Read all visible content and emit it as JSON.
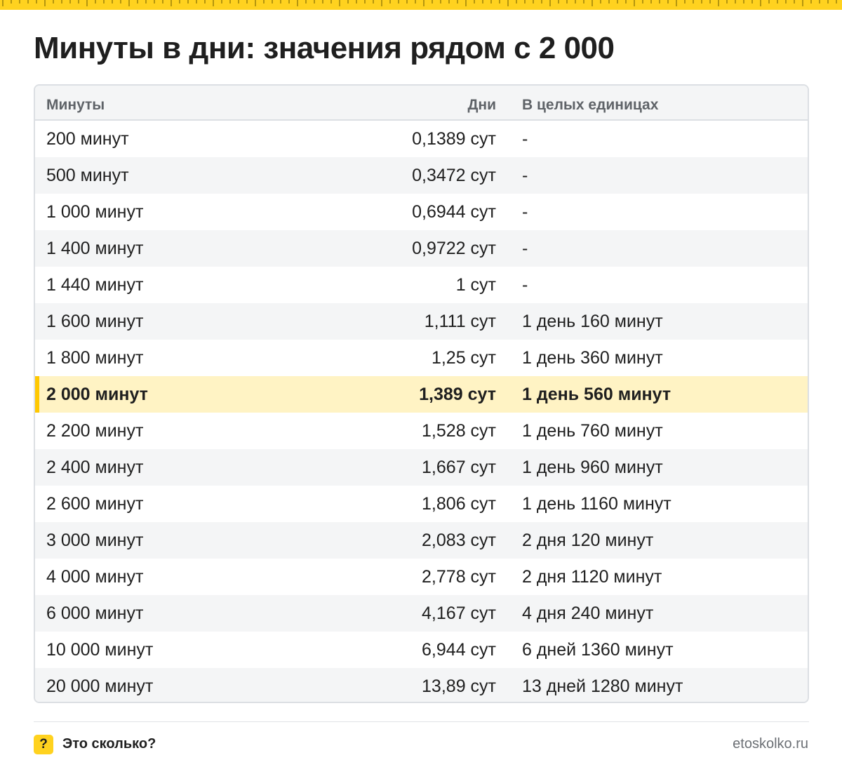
{
  "title": "Минуты в дни: значения рядом с 2 000",
  "colors": {
    "accent": "#ffd21f",
    "highlight_row": "#fff3c4",
    "highlight_bar": "#ffc800"
  },
  "table": {
    "headers": [
      "Минуты",
      "Дни",
      "В целых единицах"
    ],
    "highlight_index": 7,
    "rows": [
      [
        "200 минут",
        "0,1389 сут",
        "-"
      ],
      [
        "500 минут",
        "0,3472 сут",
        "-"
      ],
      [
        "1 000 минут",
        "0,6944 сут",
        "-"
      ],
      [
        "1 400 минут",
        "0,9722 сут",
        "-"
      ],
      [
        "1 440 минут",
        "1 сут",
        "-"
      ],
      [
        "1 600 минут",
        "1,111 сут",
        "1 день 160 минут"
      ],
      [
        "1 800 минут",
        "1,25 сут",
        "1 день 360 минут"
      ],
      [
        "2 000 минут",
        "1,389 сут",
        "1 день 560 минут"
      ],
      [
        "2 200 минут",
        "1,528 сут",
        "1 день 760 минут"
      ],
      [
        "2 400 минут",
        "1,667 сут",
        "1 день 960 минут"
      ],
      [
        "2 600 минут",
        "1,806 сут",
        "1 день 1160 минут"
      ],
      [
        "3 000 минут",
        "2,083 сут",
        "2 дня 120 минут"
      ],
      [
        "4 000 минут",
        "2,778 сут",
        "2 дня 1120 минут"
      ],
      [
        "6 000 минут",
        "4,167 сут",
        "4 дня 240 минут"
      ],
      [
        "10 000 минут",
        "6,944 сут",
        "6 дней 1360 минут"
      ],
      [
        "20 000 минут",
        "13,89 сут",
        "13 дней 1280 минут"
      ]
    ]
  },
  "footer": {
    "badge_icon": "question-mark-icon",
    "badge_glyph": "?",
    "brand": "Это сколько?",
    "site": "etoskolko.ru"
  }
}
